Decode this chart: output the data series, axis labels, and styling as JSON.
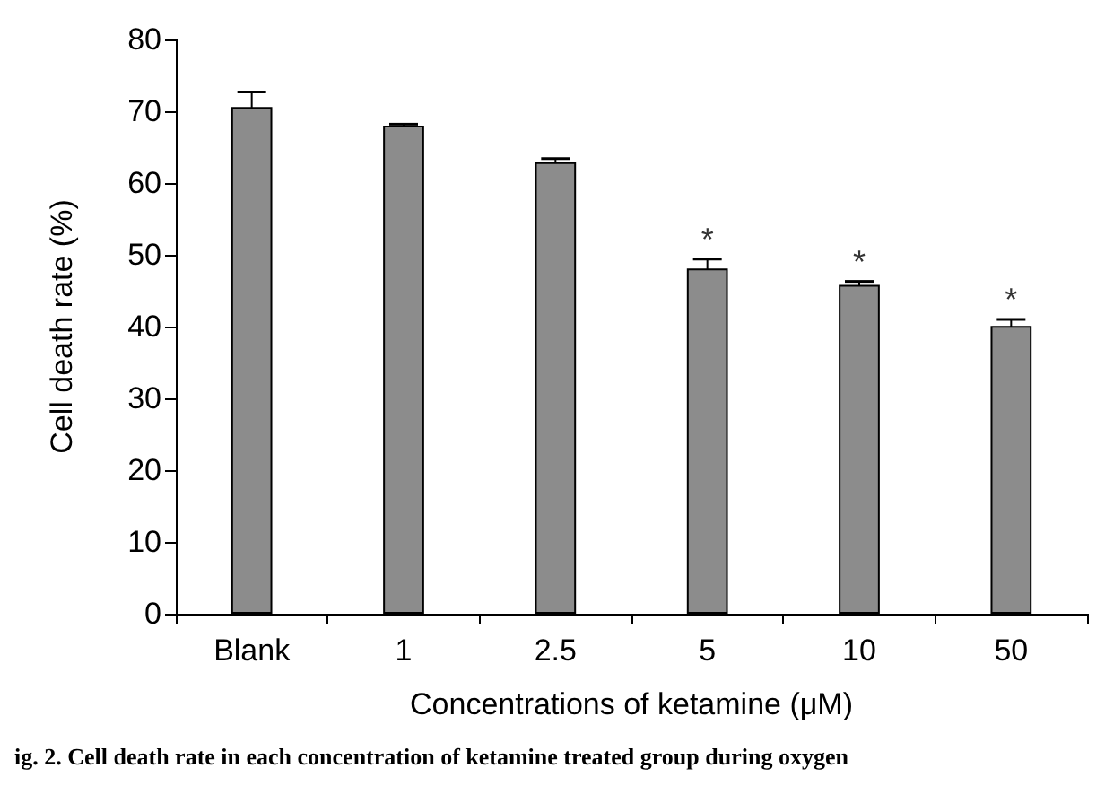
{
  "chart_data": {
    "type": "bar",
    "xlabel": "Concentrations of ketamine (μM)",
    "ylabel": "Cell death rate (%)",
    "categories": [
      "Blank",
      "1",
      "2.5",
      "5",
      "10",
      "50"
    ],
    "values": [
      70.6,
      68.0,
      62.9,
      48.1,
      45.8,
      40.1
    ],
    "errors": [
      2.1,
      0.2,
      0.5,
      1.3,
      0.5,
      0.9
    ],
    "color": "#8c8c8c",
    "ylim": [
      0,
      80
    ],
    "yticks": [
      0,
      10,
      20,
      30,
      40,
      50,
      60,
      70,
      80
    ],
    "grid": false,
    "annotations": [
      {
        "text": "*",
        "x": "5",
        "y": 49.4
      },
      {
        "text": "*",
        "x": "10",
        "y": 46.3
      },
      {
        "text": "*",
        "x": "50",
        "y": 41.0
      },
      "ig. 2. Cell death rate in each concentration of ketamine treated group during oxygen"
    ]
  }
}
